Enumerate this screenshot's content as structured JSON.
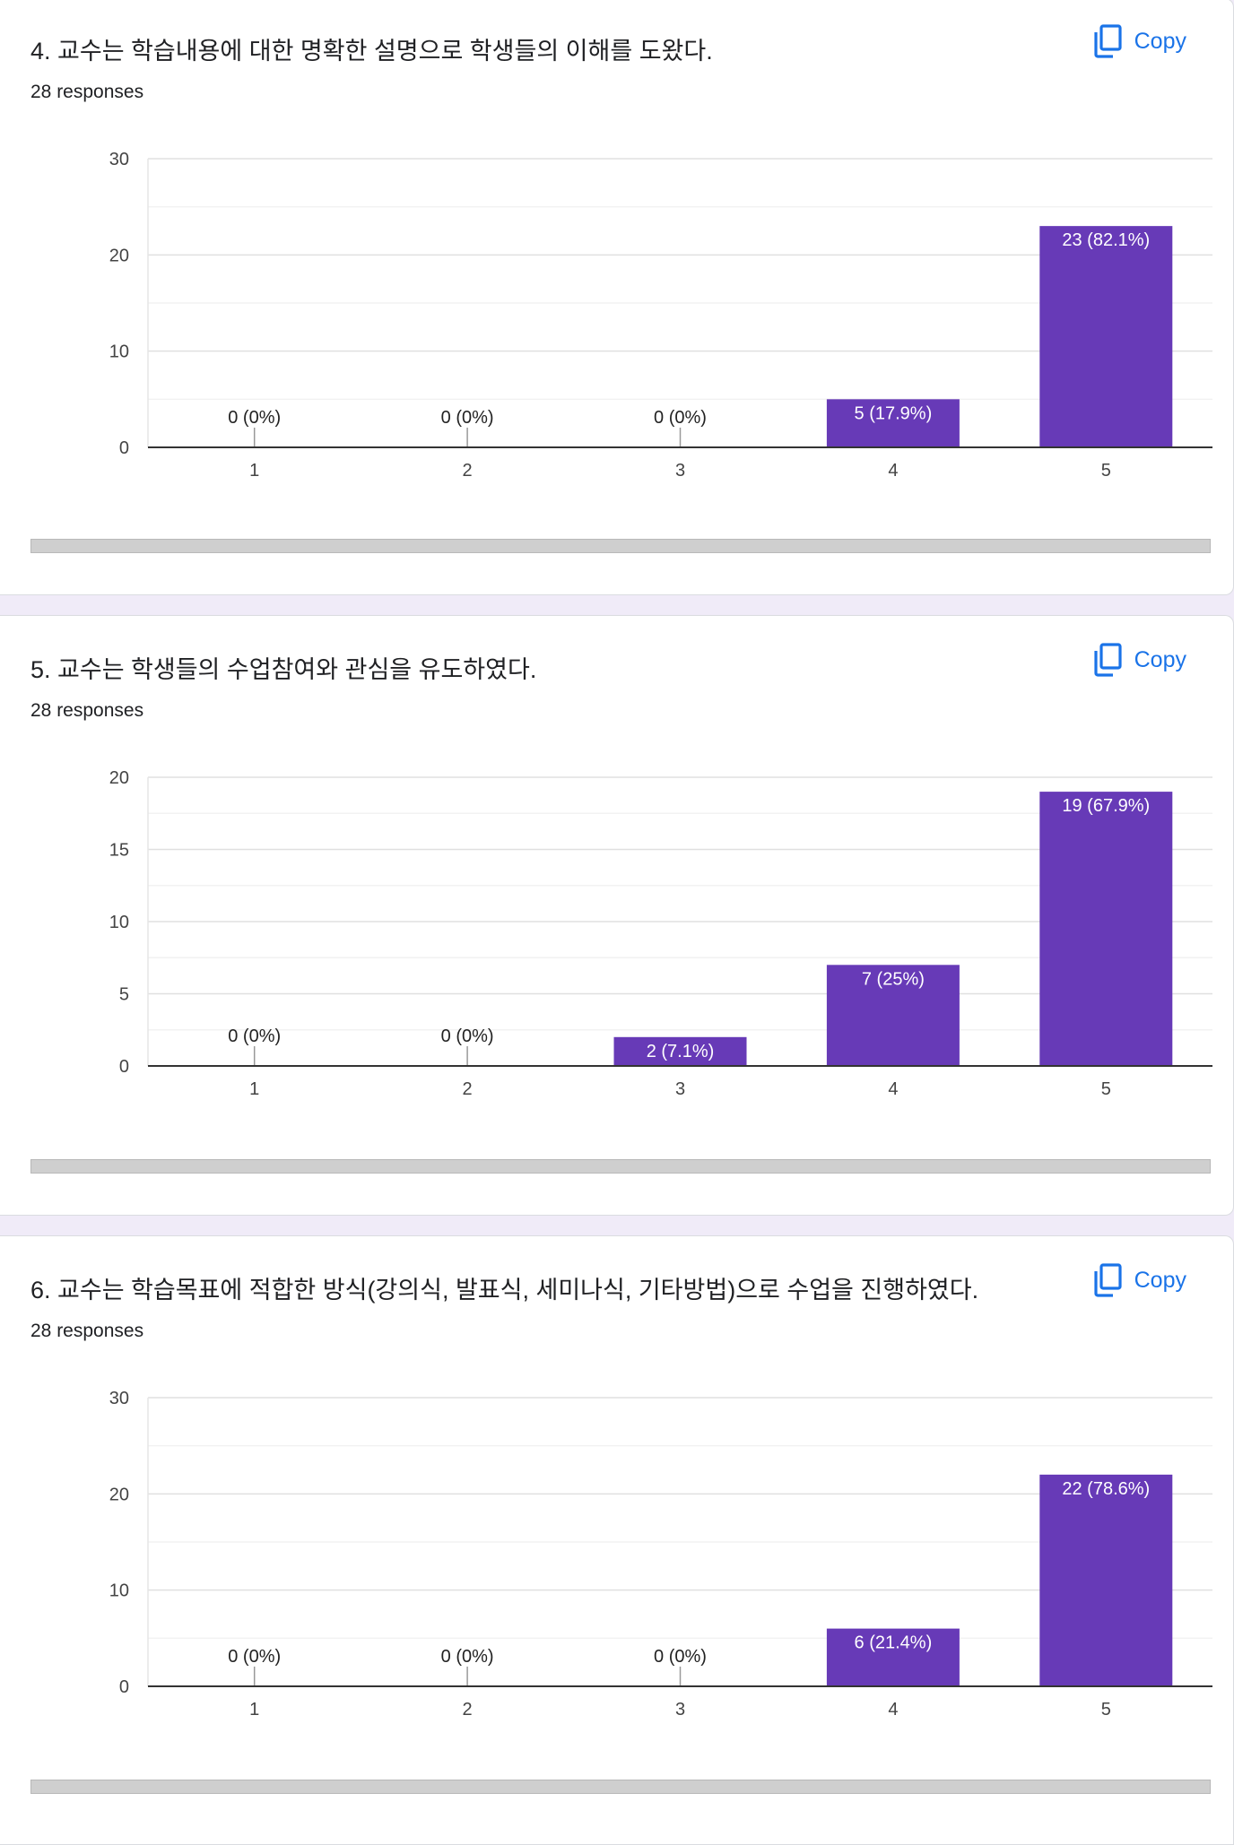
{
  "copy_label": "Copy",
  "colors": {
    "bar": "#673ab7",
    "accent": "#1a73e8"
  },
  "questions": [
    {
      "title": "4. 교수는 학습내용에 대한 명확한 설명으로 학생들의 이해를 도왔다.",
      "responses": "28 responses"
    },
    {
      "title": "5. 교수는 학생들의 수업참여와 관심을 유도하였다.",
      "responses": "28 responses"
    },
    {
      "title": "6. 교수는 학습목표에 적합한 방식(강의식, 발표식, 세미나식, 기타방법)으로 수업을 진행하였다.",
      "responses": "28 responses"
    }
  ],
  "chart_data": [
    {
      "type": "bar",
      "title": "4. 교수는 학습내용에 대한 명확한 설명으로 학생들의 이해를 도왔다.",
      "categories": [
        "1",
        "2",
        "3",
        "4",
        "5"
      ],
      "values": [
        0,
        0,
        0,
        5,
        23
      ],
      "labels": [
        "0 (0%)",
        "0 (0%)",
        "0 (0%)",
        "5 (17.9%)",
        "23 (82.1%)"
      ],
      "yticks": [
        0,
        10,
        20,
        30
      ],
      "ylim": [
        0,
        30
      ],
      "xlabel": "",
      "ylabel": ""
    },
    {
      "type": "bar",
      "title": "5. 교수는 학생들의 수업참여와 관심을 유도하였다.",
      "categories": [
        "1",
        "2",
        "3",
        "4",
        "5"
      ],
      "values": [
        0,
        0,
        2,
        7,
        19
      ],
      "labels": [
        "0 (0%)",
        "0 (0%)",
        "2 (7.1%)",
        "7 (25%)",
        "19 (67.9%)"
      ],
      "yticks": [
        0,
        5,
        10,
        15,
        20
      ],
      "ylim": [
        0,
        20
      ],
      "xlabel": "",
      "ylabel": ""
    },
    {
      "type": "bar",
      "title": "6. 교수는 학습목표에 적합한 방식(강의식, 발표식, 세미나식, 기타방법)으로 수업을 진행하였다.",
      "categories": [
        "1",
        "2",
        "3",
        "4",
        "5"
      ],
      "values": [
        0,
        0,
        0,
        6,
        22
      ],
      "labels": [
        "0 (0%)",
        "0 (0%)",
        "0 (0%)",
        "6 (21.4%)",
        "22 (78.6%)"
      ],
      "yticks": [
        0,
        10,
        20,
        30
      ],
      "ylim": [
        0,
        30
      ],
      "xlabel": "",
      "ylabel": ""
    }
  ]
}
